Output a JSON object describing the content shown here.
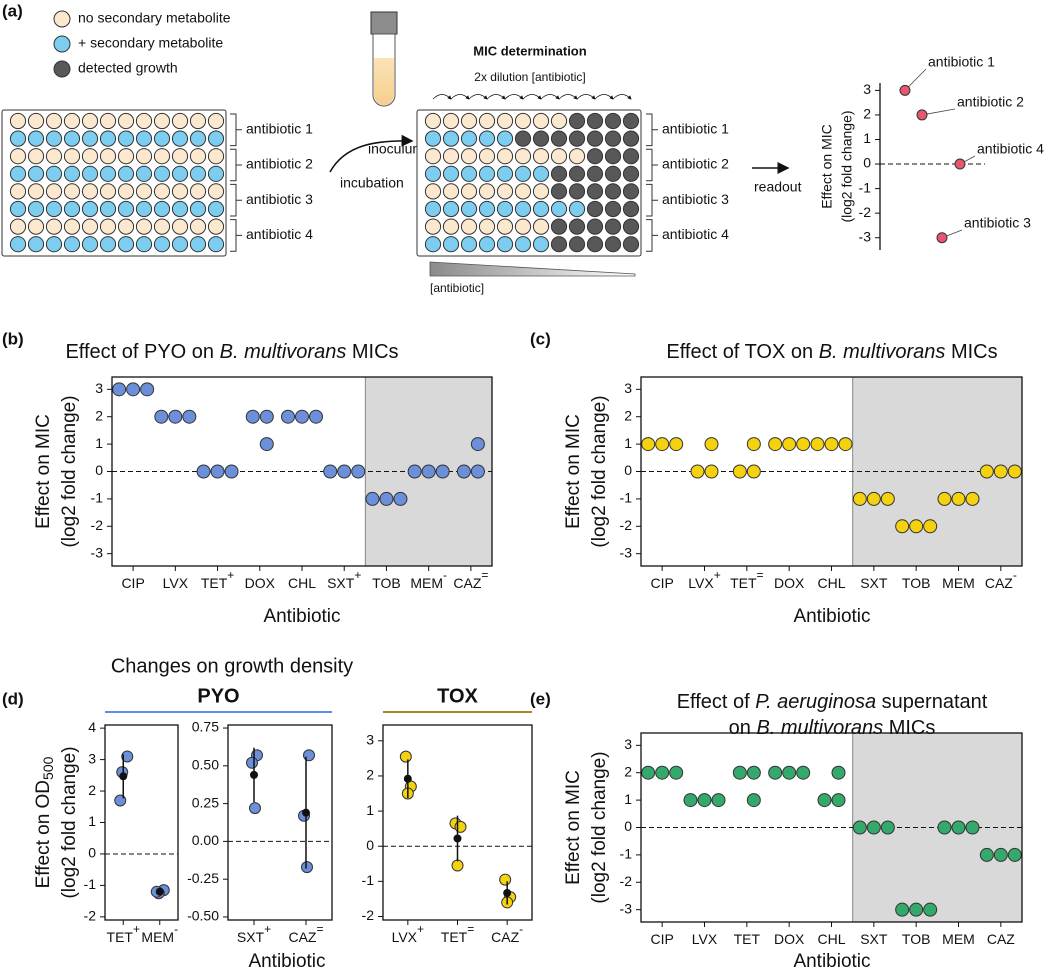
{
  "panel_labels": [
    "(a)",
    "(b)",
    "(c)",
    "(d)",
    "(e)"
  ],
  "schematic": {
    "legend": [
      "no secondary metabolite",
      "+ secondary metabolite",
      "detected growth"
    ],
    "plate_rows": [
      "antibiotic 1",
      "antibiotic 2",
      "antibiotic 3",
      "antibiotic 4"
    ],
    "inoculum": "inoculum",
    "incubation": "incubation",
    "mic_title": "MIC determination",
    "dilution": "2x dilution [antibiotic]",
    "gradient_label": "[antibiotic]",
    "readout": "readout"
  },
  "panel_d": {
    "title": "Changes on growth density",
    "groups": [
      {
        "name": "PYO",
        "color": "#5b8def"
      },
      {
        "name": "TOX",
        "color": "#a68b1c"
      }
    ]
  },
  "chart_data": [
    {
      "type": "dot",
      "ylabel": [
        "Effect on MIC",
        "(log2 fold change)"
      ],
      "labels": [
        "antibiotic 1",
        "antibiotic 2",
        "antibiotic 4",
        "antibiotic 3"
      ],
      "values": [
        3,
        2,
        0,
        -3
      ],
      "color": "#e8566e",
      "ylim": [
        -3.5,
        3.3
      ],
      "yticks": [
        -3,
        -2,
        -1,
        0,
        1,
        2,
        3
      ],
      "reference_line": 0
    },
    {
      "type": "strip",
      "title": [
        [
          "Effect of PYO on ",
          "B. multivorans",
          " MICs"
        ]
      ],
      "categories": [
        "CIP",
        "LVX",
        "TET",
        "DOX",
        "CHL",
        "SXT",
        "TOB",
        "MEM",
        "CAZ"
      ],
      "superscripts": [
        null,
        null,
        "+",
        null,
        null,
        "+",
        null,
        "-",
        "="
      ],
      "values": [
        [
          3,
          3,
          3
        ],
        [
          2,
          2,
          2
        ],
        [
          0,
          0,
          0
        ],
        [
          2,
          2,
          1
        ],
        [
          2,
          2,
          2
        ],
        [
          0,
          0,
          0
        ],
        [
          -1,
          -1,
          -1
        ],
        [
          0,
          0,
          0
        ],
        [
          0,
          0,
          1
        ]
      ],
      "color": "#6b8fd9",
      "ylim": [
        -3.45,
        3.45
      ],
      "yticks": [
        -3,
        -2,
        -1,
        0,
        1,
        2,
        3
      ],
      "ylabel": [
        "Effect on MIC",
        "(log2 fold change)"
      ],
      "xlabel": "Antibiotic",
      "reference_line": 0,
      "shaded_from": 6
    },
    {
      "type": "strip",
      "title": [
        [
          "Effect of TOX on ",
          "B. multivorans",
          " MICs"
        ]
      ],
      "categories": [
        "CIP",
        "LVX",
        "TET",
        "DOX",
        "CHL",
        "SXT",
        "TOB",
        "MEM",
        "CAZ"
      ],
      "superscripts": [
        null,
        "+",
        "=",
        null,
        null,
        null,
        null,
        null,
        "-"
      ],
      "values": [
        [
          1,
          1,
          1
        ],
        [
          0,
          0,
          1
        ],
        [
          0,
          0,
          1
        ],
        [
          1,
          1,
          1
        ],
        [
          1,
          1,
          1
        ],
        [
          -1,
          -1,
          -1
        ],
        [
          -2,
          -2,
          -2
        ],
        [
          -1,
          -1,
          -1
        ],
        [
          0,
          0,
          0
        ]
      ],
      "color": "#f5d20f",
      "ylim": [
        -3.45,
        3.45
      ],
      "yticks": [
        -3,
        -2,
        -1,
        0,
        1,
        2,
        3
      ],
      "ylabel": [
        "Effect on MIC",
        "(log2 fold change)"
      ],
      "xlabel": "Antibiotic",
      "reference_line": 0,
      "shaded_from": 5
    },
    {
      "type": "strip",
      "categories": [
        "TET",
        "MEM"
      ],
      "superscripts": [
        "+",
        "-"
      ],
      "values": [
        [
          3.1,
          2.6,
          1.7
        ],
        [
          -1.15,
          -1.25,
          -1.2
        ]
      ],
      "means": [
        2.47,
        -1.2
      ],
      "errors": [
        0.7,
        0.05
      ],
      "color": "#6b8fd9",
      "ylim": [
        -2.1,
        4.1
      ],
      "yticks": [
        -2,
        -1,
        0,
        1,
        2,
        3,
        4
      ],
      "ylabel": [
        "Effect on OD",
        "(log2 fold change)"
      ],
      "ylabel_subscript": "500",
      "reference_line": 0
    },
    {
      "type": "strip",
      "categories": [
        "SXT",
        "CAZ"
      ],
      "superscripts": [
        "+",
        "="
      ],
      "values": [
        [
          0.57,
          0.52,
          0.22
        ],
        [
          0.57,
          0.17,
          -0.17
        ]
      ],
      "means": [
        0.44,
        0.19
      ],
      "errors": [
        0.18,
        0.37
      ],
      "color": "#6b8fd9",
      "ylim": [
        -0.52,
        0.77
      ],
      "yticks": [
        {
          "value": -0.5,
          "label": "-0.50"
        },
        -0.25,
        {
          "value": 0,
          "label": "0.00"
        },
        0.25,
        {
          "value": 0.5,
          "label": "0.50"
        },
        0.75
      ],
      "xlabel": "Antibiotic",
      "reference_line": 0
    },
    {
      "type": "strip",
      "categories": [
        "LVX",
        "TET",
        "CAZ"
      ],
      "superscripts": [
        "+",
        "=",
        "-"
      ],
      "values": [
        [
          2.55,
          1.7,
          1.5
        ],
        [
          0.65,
          0.55,
          -0.55
        ],
        [
          -0.95,
          -1.45,
          -1.6
        ]
      ],
      "means": [
        1.92,
        0.22,
        -1.33
      ],
      "errors": [
        0.55,
        0.65,
        0.33
      ],
      "color": "#f5d20f",
      "ylim": [
        -2.1,
        3.45
      ],
      "yticks": [
        -2,
        -1,
        0,
        1,
        2,
        3
      ],
      "reference_line": 0
    },
    {
      "type": "strip",
      "title": [
        [
          "Effect of ",
          "P. aeruginosa",
          " supernatant"
        ],
        [
          "on ",
          "B. multivorans",
          " MICs"
        ]
      ],
      "categories": [
        "CIP",
        "LVX",
        "TET",
        "DOX",
        "CHL",
        "SXT",
        "TOB",
        "MEM",
        "CAZ"
      ],
      "values": [
        [
          2,
          2,
          2
        ],
        [
          1,
          1,
          1
        ],
        [
          2,
          2,
          1
        ],
        [
          2,
          2,
          2
        ],
        [
          2,
          1,
          1
        ],
        [
          0,
          0,
          0
        ],
        [
          -3,
          -3,
          -3
        ],
        [
          0,
          0,
          0
        ],
        [
          -1,
          -1,
          -1
        ]
      ],
      "color": "#35a96b",
      "ylim": [
        -3.45,
        3.45
      ],
      "yticks": [
        -3,
        -2,
        -1,
        0,
        1,
        2,
        3
      ],
      "ylabel": [
        "Effect on MIC",
        "(log2 fold change)"
      ],
      "xlabel": "Antibiotic",
      "reference_line": 0,
      "shaded_from": 5
    }
  ]
}
